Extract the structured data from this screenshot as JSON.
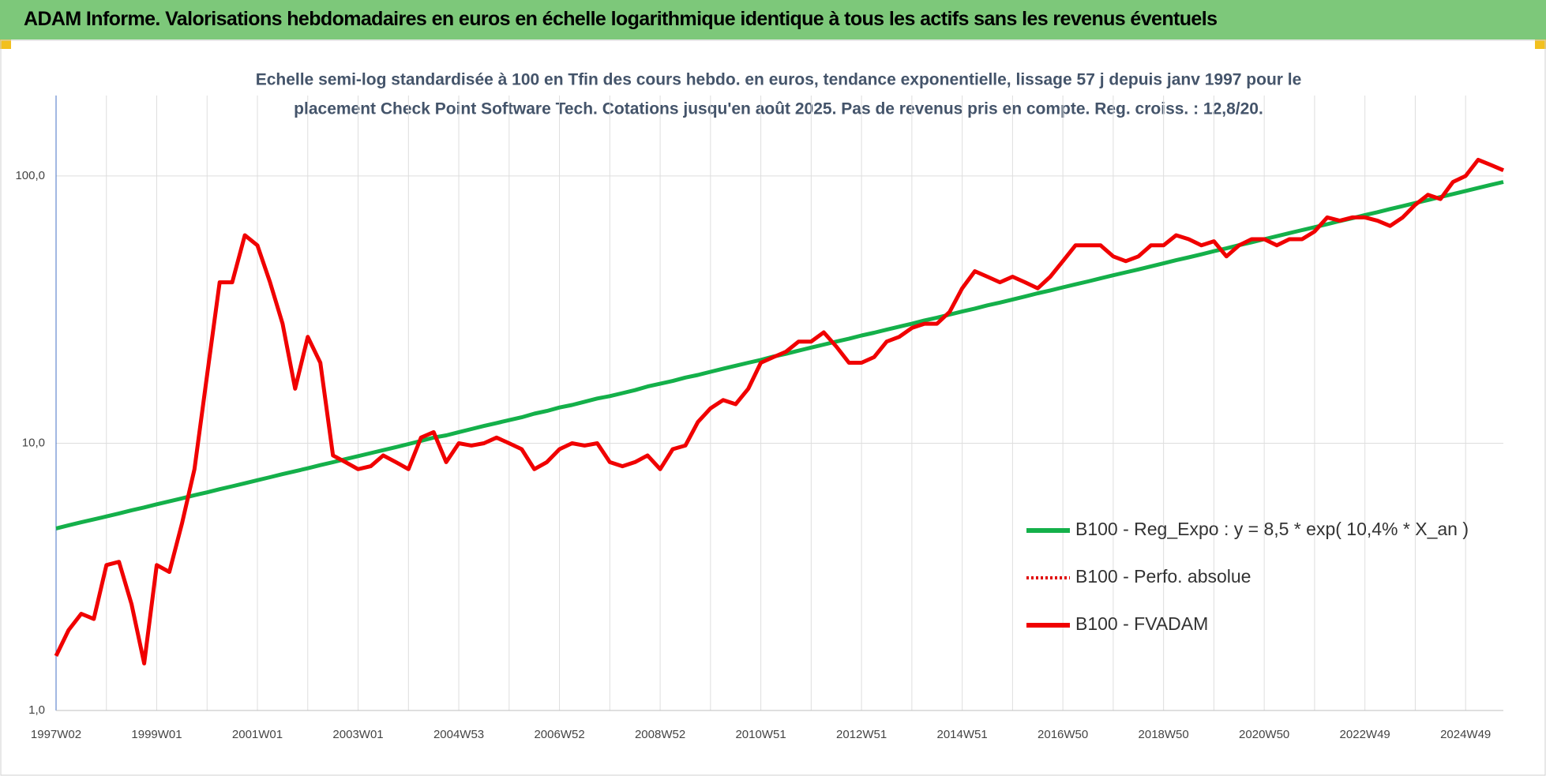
{
  "chart_data": {
    "type": "line",
    "title": "ADAM Informe. Valorisations hebdomadaires en euros en échelle logarithmique identique à tous les actifs sans les revenus éventuels",
    "subtitle": [
      "Echelle semi-log standardisée à 100 en Tfin des cours hebdo. en euros, tendance exponentielle, lissage 57 j depuis janv 1997 pour le",
      "placement Check Point Software Tech. Cotations jusqu'en août 2025. Pas de revenus pris en compte. Reg. croiss. : 12,8/20."
    ],
    "log_scale": true,
    "grid": true,
    "legend": "lower right",
    "ylim": [
      1,
      200
    ],
    "yticks": [
      {
        "value": 1,
        "label": "1,0"
      },
      {
        "value": 10,
        "label": "10,0"
      },
      {
        "value": 100,
        "label": "100,0"
      }
    ],
    "categories": [
      "1997W02",
      null,
      null,
      null,
      null,
      null,
      null,
      null,
      "1999W01",
      null,
      null,
      null,
      null,
      null,
      null,
      null,
      "2001W01",
      null,
      null,
      null,
      null,
      null,
      null,
      null,
      "2003W01",
      null,
      null,
      null,
      null,
      null,
      null,
      null,
      "2004W53",
      null,
      null,
      null,
      null,
      null,
      null,
      null,
      "2006W52",
      null,
      null,
      null,
      null,
      null,
      null,
      null,
      "2008W52",
      null,
      null,
      null,
      null,
      null,
      null,
      null,
      "2010W51",
      null,
      null,
      null,
      null,
      null,
      null,
      null,
      "2012W51",
      null,
      null,
      null,
      null,
      null,
      null,
      null,
      "2014W51",
      null,
      null,
      null,
      null,
      null,
      null,
      null,
      "2016W50",
      null,
      null,
      null,
      null,
      null,
      null,
      null,
      "2018W50",
      null,
      null,
      null,
      null,
      null,
      null,
      null,
      "2020W50",
      null,
      null,
      null,
      null,
      null,
      null,
      null,
      "2022W49",
      null,
      null,
      null,
      null,
      null,
      null,
      null,
      "2024W49",
      null,
      null,
      null
    ],
    "series": [
      {
        "name": "B100 - Reg_Expo : y = 8,5 * exp( 10,4% *  X_an )",
        "color": "#14b04a",
        "style": "solid",
        "values": [
          4.8,
          4.93,
          5.06,
          5.19,
          5.32,
          5.46,
          5.61,
          5.75,
          5.91,
          6.06,
          6.22,
          6.39,
          6.55,
          6.73,
          6.9,
          7.08,
          7.27,
          7.46,
          7.66,
          7.86,
          8.06,
          8.28,
          8.49,
          8.72,
          8.95,
          9.18,
          9.42,
          9.67,
          9.93,
          10.2,
          10.5,
          10.7,
          11.0,
          11.3,
          11.6,
          11.9,
          12.2,
          12.5,
          12.9,
          13.2,
          13.6,
          13.9,
          14.3,
          14.7,
          15.0,
          15.4,
          15.8,
          16.3,
          16.7,
          17.1,
          17.6,
          18.0,
          18.5,
          19.0,
          19.5,
          20.0,
          20.5,
          21.1,
          21.6,
          22.2,
          22.8,
          23.4,
          24.0,
          24.6,
          25.3,
          25.9,
          26.6,
          27.3,
          28.0,
          28.8,
          29.5,
          30.3,
          31.1,
          31.9,
          32.8,
          33.6,
          34.5,
          35.4,
          36.4,
          37.3,
          38.3,
          39.3,
          40.3,
          41.4,
          42.5,
          43.6,
          44.7,
          45.9,
          47.1,
          48.4,
          49.6,
          50.9,
          52.3,
          53.6,
          55.1,
          56.5,
          58.0,
          59.5,
          61.1,
          62.7,
          64.3,
          66.0,
          67.8,
          69.5,
          71.4,
          73.2,
          75.2,
          77.1,
          79.2,
          81.3,
          83.4,
          85.6,
          87.9,
          90.2,
          92.6,
          95.0
        ]
      },
      {
        "name": "B100 - Perfo. absolue",
        "color": "#e00000",
        "style": "dotted",
        "values": [
          1.6,
          2.0,
          2.3,
          2.2,
          3.5,
          3.6,
          2.5,
          1.5,
          3.5,
          3.3,
          5.0,
          8.0,
          18,
          40,
          40,
          60,
          55,
          40,
          28,
          16,
          25,
          20,
          9.0,
          8.5,
          8.0,
          8.2,
          9.0,
          8.5,
          8.0,
          10.5,
          11.0,
          8.5,
          10.0,
          9.8,
          10.0,
          10.5,
          10.0,
          9.5,
          8.0,
          8.5,
          9.5,
          10.0,
          9.8,
          10.0,
          8.5,
          8.2,
          8.5,
          9.0,
          8.0,
          9.5,
          9.8,
          12.0,
          13.5,
          14.5,
          14.0,
          16.0,
          20,
          21,
          22,
          24,
          24,
          26,
          23,
          20,
          20,
          21,
          24,
          25,
          27,
          28,
          28,
          31,
          38,
          44,
          42,
          40,
          42,
          40,
          38,
          42,
          48,
          55,
          55,
          55,
          50,
          48,
          50,
          55,
          55,
          60,
          58,
          55,
          57,
          50,
          55,
          58,
          58,
          55,
          58,
          58,
          62,
          70,
          68,
          70,
          70,
          68,
          65,
          70,
          78,
          85,
          82,
          95,
          100,
          115,
          110,
          105
        ]
      },
      {
        "name": "B100 - FVADAM",
        "color": "#f00000",
        "style": "solid",
        "values": [
          1.6,
          2.0,
          2.3,
          2.2,
          3.5,
          3.6,
          2.5,
          1.5,
          3.5,
          3.3,
          5.0,
          8.0,
          18,
          40,
          40,
          60,
          55,
          40,
          28,
          16,
          25,
          20,
          9.0,
          8.5,
          8.0,
          8.2,
          9.0,
          8.5,
          8.0,
          10.5,
          11.0,
          8.5,
          10.0,
          9.8,
          10.0,
          10.5,
          10.0,
          9.5,
          8.0,
          8.5,
          9.5,
          10.0,
          9.8,
          10.0,
          8.5,
          8.2,
          8.5,
          9.0,
          8.0,
          9.5,
          9.8,
          12.0,
          13.5,
          14.5,
          14.0,
          16.0,
          20,
          21,
          22,
          24,
          24,
          26,
          23,
          20,
          20,
          21,
          24,
          25,
          27,
          28,
          28,
          31,
          38,
          44,
          42,
          40,
          42,
          40,
          38,
          42,
          48,
          55,
          55,
          55,
          50,
          48,
          50,
          55,
          55,
          60,
          58,
          55,
          57,
          50,
          55,
          58,
          58,
          55,
          58,
          58,
          62,
          70,
          68,
          70,
          70,
          68,
          65,
          70,
          78,
          85,
          82,
          95,
          100,
          115,
          110,
          105
        ]
      }
    ]
  }
}
